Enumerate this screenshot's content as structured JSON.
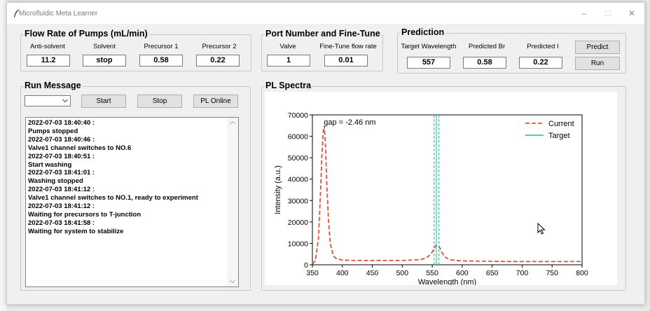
{
  "window": {
    "title": "Microfluidic Meta Learner"
  },
  "pumps": {
    "title": "Flow Rate of Pumps (mL/min)",
    "fields": [
      {
        "label": "Anti-solvent",
        "value": "11.2"
      },
      {
        "label": "Solvent",
        "value": "stop"
      },
      {
        "label": "Precursor 1",
        "value": "0.58"
      },
      {
        "label": "Precursor 2",
        "value": "0.22"
      }
    ]
  },
  "port": {
    "title": "Port Number and Fine-Tune",
    "fields": [
      {
        "label": "Valve",
        "value": "1"
      },
      {
        "label": "Fine-Tune flow rate",
        "value": "0.01"
      }
    ]
  },
  "prediction": {
    "title": "Prediction",
    "fields": [
      {
        "label": "Target Wavelength",
        "value": "557"
      },
      {
        "label": "Predicted Br",
        "value": "0.58"
      },
      {
        "label": "Predicted I",
        "value": "0.22"
      }
    ],
    "predict_label": "Predict",
    "run_label": "Run"
  },
  "run_message": {
    "title": "Run Message",
    "combo_value": "",
    "start_label": "Start",
    "stop_label": "Stop",
    "pl_online_label": "PL Online",
    "log": [
      "2022-07-03 18:40:40 :",
      "Pumps stopped",
      "2022-07-03 18:40:46 :",
      "Valve1 channel switches to NO.6",
      "2022-07-03 18:40:51 :",
      "Start washing",
      "2022-07-03 18:41:01 :",
      "Washing stopped",
      "2022-07-03 18:41:12 :",
      "Valve1 channel switches to NO.1, ready to experiment",
      "2022-07-03 18:41:12 :",
      "Waiting for precursors to T-junction",
      "2022-07-03 18:41:58 :",
      "Waiting for system to stabilize"
    ]
  },
  "pl_spectra": {
    "title": "PL Spectra"
  },
  "chart_data": {
    "type": "line",
    "title": "",
    "xlabel": "Wavelength (nm)",
    "ylabel": "Intensity (a.u.)",
    "xlim": [
      350,
      800
    ],
    "ylim": [
      0,
      70000
    ],
    "xticks": [
      350,
      400,
      450,
      500,
      550,
      600,
      650,
      700,
      750,
      800
    ],
    "yticks": [
      0,
      10000,
      20000,
      30000,
      40000,
      50000,
      60000,
      70000
    ],
    "grid": false,
    "legend": "top-right",
    "annotation": "gap = -2.46 nm",
    "series": [
      {
        "name": "Current",
        "color": "#e05040",
        "style": "dashed",
        "x": [
          350,
          355,
          360,
          363,
          366,
          368,
          370,
          372,
          374,
          377,
          380,
          385,
          390,
          400,
          420,
          450,
          500,
          530,
          540,
          548,
          553,
          556,
          559,
          562,
          566,
          572,
          580,
          600,
          650,
          700,
          750,
          800
        ],
        "y": [
          400,
          2000,
          12000,
          30000,
          52000,
          62000,
          65000,
          55000,
          38000,
          20000,
          9500,
          4200,
          2800,
          2200,
          2000,
          2000,
          2000,
          2400,
          3200,
          5000,
          7500,
          9000,
          9300,
          8200,
          5800,
          3400,
          2300,
          1800,
          1600,
          1500,
          1500,
          1500
        ]
      },
      {
        "name": "Target",
        "color": "#40c0b0",
        "style": "solid",
        "vlines": [
          557
        ]
      },
      {
        "name": "",
        "color": "#40c0b0",
        "style": "dashed",
        "vlines": [
          553,
          561
        ]
      }
    ]
  }
}
